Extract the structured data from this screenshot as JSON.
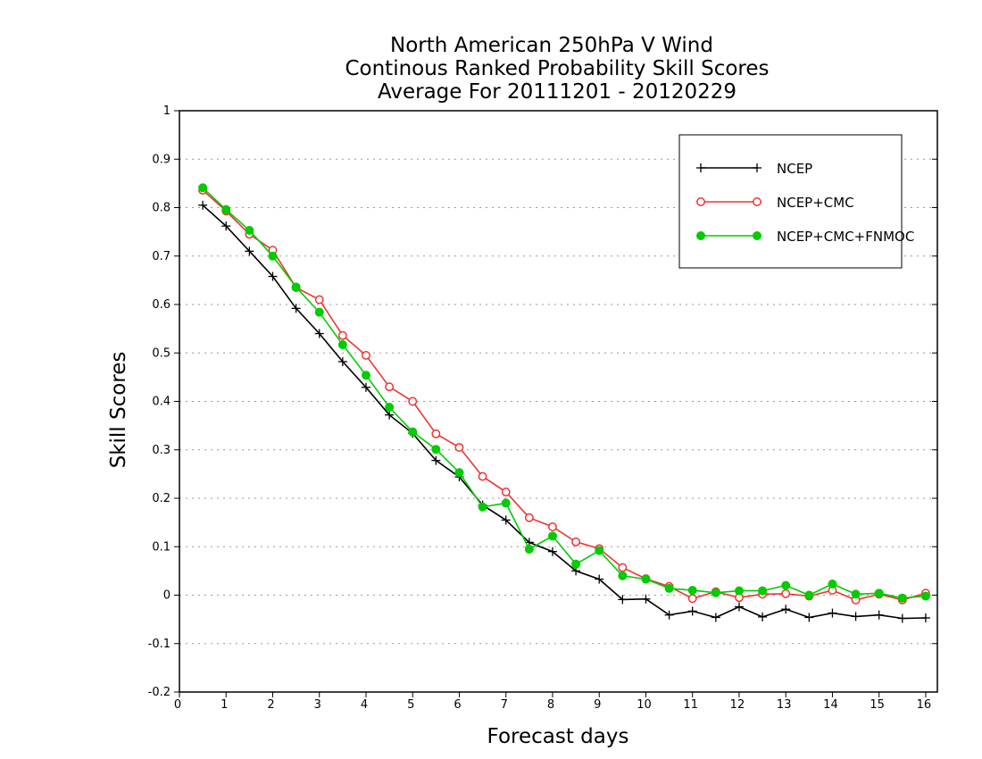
{
  "chart_data": {
    "type": "line",
    "title": [
      "North American 250hPa V Wind",
      "Continous Ranked Probability Skill Scores",
      "Average For 20111201 - 20120229"
    ],
    "xlabel": "Forecast days",
    "ylabel": "Skill Scores",
    "xlim": [
      0,
      16.25
    ],
    "ylim": [
      -0.2,
      1
    ],
    "xticks": [
      0,
      1,
      2,
      3,
      4,
      5,
      6,
      7,
      8,
      9,
      10,
      11,
      12,
      13,
      14,
      15,
      16
    ],
    "yticks": [
      -0.2,
      -0.1,
      0,
      0.1,
      0.2,
      0.3,
      0.4,
      0.5,
      0.6,
      0.7,
      0.8,
      0.9,
      1
    ],
    "ytick_labels": [
      "-0.2",
      "-0.1",
      "0",
      "0.1",
      "0.2",
      "0.3",
      "0.4",
      "0.5",
      "0.6",
      "0.7",
      "0.8",
      "0.9",
      "1"
    ],
    "grid": "horizontal dotted",
    "legend_position": "top-right",
    "x": [
      0.5,
      1,
      1.5,
      2,
      2.5,
      3,
      3.5,
      4,
      4.5,
      5,
      5.5,
      6,
      6.5,
      7,
      7.5,
      8,
      8.5,
      9,
      9.5,
      10,
      10.5,
      11,
      11.5,
      12,
      12.5,
      13,
      13.5,
      14,
      14.5,
      15,
      15.5,
      16
    ],
    "series": [
      {
        "name": "NCEP",
        "color": "#000000",
        "marker": "plus",
        "values": [
          0.805,
          0.762,
          0.71,
          0.658,
          0.592,
          0.54,
          0.482,
          0.429,
          0.372,
          0.334,
          0.278,
          0.244,
          0.186,
          0.155,
          0.109,
          0.09,
          0.05,
          0.033,
          -0.009,
          -0.008,
          -0.041,
          -0.033,
          -0.046,
          -0.024,
          -0.045,
          -0.029,
          -0.046,
          -0.037,
          -0.044,
          -0.041,
          -0.048,
          -0.047
        ]
      },
      {
        "name": "NCEP+CMC",
        "color": "#ee3333",
        "marker": "open-circle",
        "values": [
          0.836,
          0.793,
          0.745,
          0.712,
          0.635,
          0.61,
          0.536,
          0.495,
          0.43,
          0.4,
          0.333,
          0.305,
          0.245,
          0.213,
          0.16,
          0.141,
          0.11,
          0.096,
          0.057,
          0.034,
          0.018,
          -0.007,
          0.007,
          -0.005,
          0.002,
          0.003,
          -0.002,
          0.01,
          -0.01,
          0.002,
          -0.01,
          0.004
        ]
      },
      {
        "name": "NCEP+CMC+FNMOC",
        "color": "#00cc00",
        "marker": "filled-circle",
        "values": [
          0.841,
          0.796,
          0.753,
          0.7,
          0.636,
          0.584,
          0.517,
          0.454,
          0.388,
          0.337,
          0.301,
          0.253,
          0.182,
          0.19,
          0.095,
          0.122,
          0.064,
          0.092,
          0.04,
          0.033,
          0.014,
          0.01,
          0.005,
          0.009,
          0.009,
          0.02,
          0.0,
          0.023,
          0.002,
          0.004,
          -0.006,
          -0.002
        ]
      }
    ]
  }
}
